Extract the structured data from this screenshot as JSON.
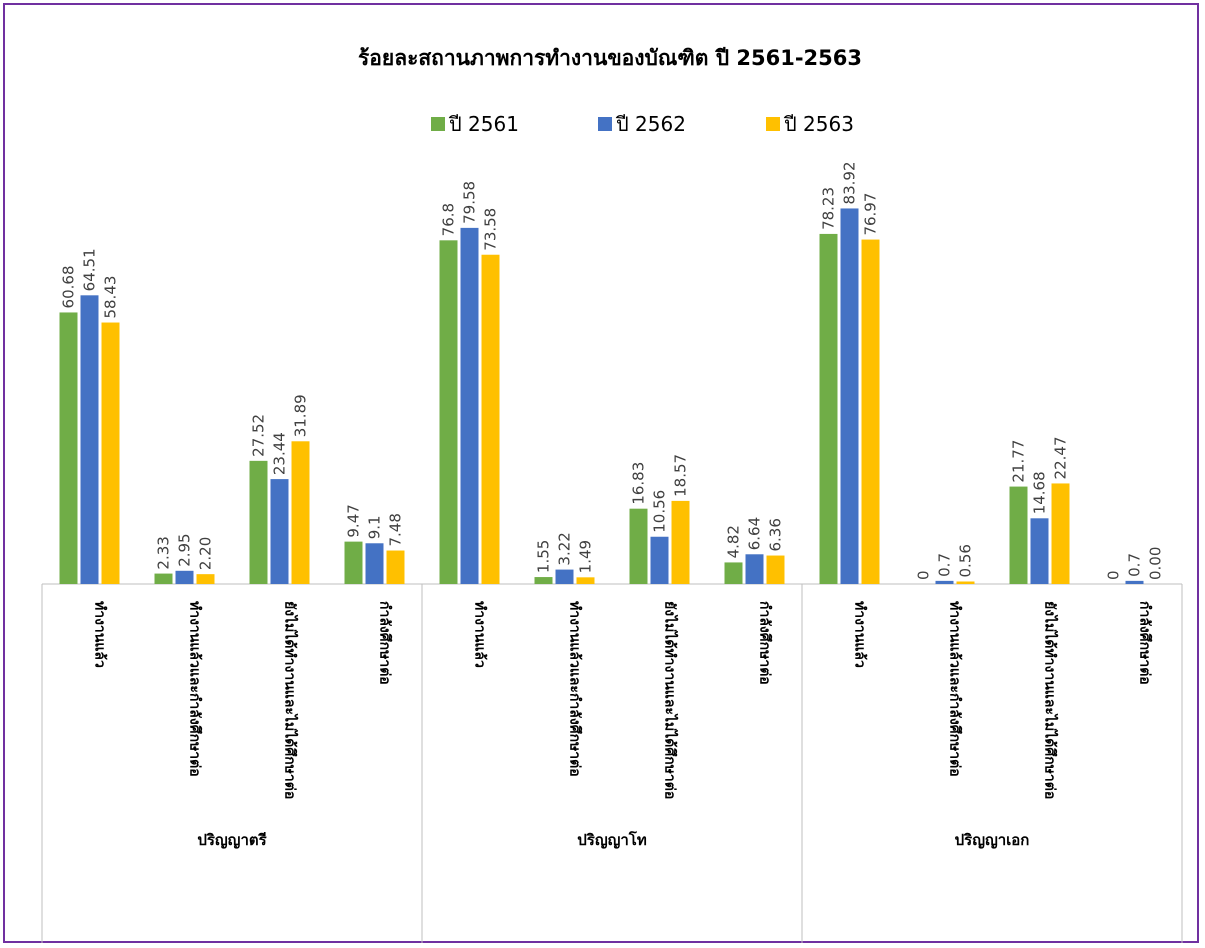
{
  "chart_data": {
    "type": "bar",
    "title": "ร้อยละสถานภาพการทำงานของบัณฑิต ปี 2561-2563",
    "legend_position": "top",
    "grid": false,
    "ylim": [
      0,
      90
    ],
    "groups": [
      {
        "name": "ปริญญาตรี",
        "categories": [
          "ทำงานแล้ว",
          "ทำงานแล้วและกำลังศึกษาต่อ",
          "ยังไม่ได้ทำงานและไม่ได้ศึกษาต่อ",
          "กำลังศึกษาต่อ"
        ]
      },
      {
        "name": "ปริญญาโท",
        "categories": [
          "ทำงานแล้ว",
          "ทำงานแล้วและกำลังศึกษาต่อ",
          "ยังไม่ได้ทำงานและไม่ได้ศึกษาต่อ",
          "กำลังศึกษาต่อ"
        ]
      },
      {
        "name": "ปริญญาเอก",
        "categories": [
          "ทำงานแล้ว",
          "ทำงานแล้วและกำลังศึกษาต่อ",
          "ยังไม่ได้ทำงานและไม่ได้ศึกษาต่อ",
          "กำลังศึกษาต่อ"
        ]
      }
    ],
    "series": [
      {
        "name": "ปี 2561",
        "color": "#70AD47",
        "values": [
          60.68,
          2.33,
          27.52,
          9.47,
          76.8,
          1.55,
          16.83,
          4.82,
          78.23,
          0,
          21.77,
          0
        ],
        "labels": [
          "60.68",
          "2.33",
          "27.52",
          "9.47",
          "76.8",
          "1.55",
          "16.83",
          "4.82",
          "78.23",
          "0",
          "21.77",
          "0"
        ]
      },
      {
        "name": "ปี 2562",
        "color": "#4472C4",
        "values": [
          64.51,
          2.95,
          23.44,
          9.1,
          79.58,
          3.22,
          10.56,
          6.64,
          83.92,
          0.7,
          14.68,
          0.7
        ],
        "labels": [
          "64.51",
          "2.95",
          "23.44",
          "9.1",
          "79.58",
          "3.22",
          "10.56",
          "6.64",
          "83.92",
          "0.7",
          "14.68",
          "0.7"
        ]
      },
      {
        "name": "ปี 2563",
        "color": "#FFC000",
        "values": [
          58.43,
          2.2,
          31.89,
          7.48,
          73.58,
          1.49,
          18.57,
          6.36,
          76.97,
          0.56,
          22.47,
          0
        ],
        "labels": [
          "58.43",
          "2.20",
          "31.89",
          "7.48",
          "73.58",
          "1.49",
          "18.57",
          "6.36",
          "76.97",
          "0.56",
          "22.47",
          "0.00"
        ]
      }
    ]
  },
  "colors": {
    "frame_border": "#7030A0",
    "axis_line": "#BFBFBF"
  }
}
